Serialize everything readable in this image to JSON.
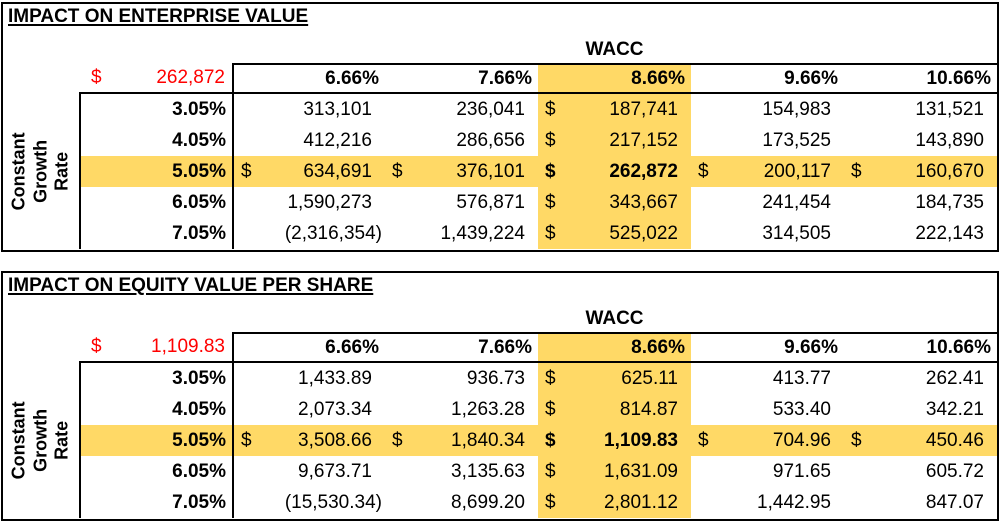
{
  "colors": {
    "highlight_fill": "#FFD966",
    "summary_text": "#FF0000",
    "border": "#000000",
    "text": "#000000",
    "background": "#FFFFFF"
  },
  "wacc_label": "WACC",
  "row_axis_label": "Constant\nGrowth Rate",
  "tables": [
    {
      "title": "IMPACT ON ENTERPRISE VALUE",
      "currency": "$",
      "base_value": {
        "currency": "$",
        "value": "262,872"
      },
      "col_headers": [
        "6.66%",
        "7.66%",
        "8.66%",
        "9.66%",
        "10.66%"
      ],
      "row_headers": [
        "3.05%",
        "4.05%",
        "5.05%",
        "6.05%",
        "7.05%"
      ],
      "highlight_col": 2,
      "highlight_row": 2,
      "rows": [
        [
          "313,101",
          "236,041",
          "187,741",
          "154,983",
          "131,521"
        ],
        [
          "412,216",
          "286,656",
          "217,152",
          "173,525",
          "143,890"
        ],
        [
          "634,691",
          "376,101",
          "262,872",
          "200,117",
          "160,670"
        ],
        [
          "1,590,273",
          "576,871",
          "343,667",
          "241,454",
          "184,735"
        ],
        [
          "(2,316,354)",
          "1,439,224",
          "525,022",
          "314,505",
          "222,143"
        ]
      ]
    },
    {
      "title": "IMPACT ON EQUITY VALUE PER SHARE",
      "currency": "$",
      "base_value": {
        "currency": "$",
        "value": "1,109.83"
      },
      "col_headers": [
        "6.66%",
        "7.66%",
        "8.66%",
        "9.66%",
        "10.66%"
      ],
      "row_headers": [
        "3.05%",
        "4.05%",
        "5.05%",
        "6.05%",
        "7.05%"
      ],
      "highlight_col": 2,
      "highlight_row": 2,
      "rows": [
        [
          "1,433.89",
          "936.73",
          "625.11",
          "413.77",
          "262.41"
        ],
        [
          "2,073.34",
          "1,263.28",
          "814.87",
          "533.40",
          "342.21"
        ],
        [
          "3,508.66",
          "1,840.34",
          "1,109.83",
          "704.96",
          "450.46"
        ],
        [
          "9,673.71",
          "3,135.63",
          "1,631.09",
          "971.65",
          "605.72"
        ],
        [
          "(15,530.34)",
          "8,699.20",
          "2,801.12",
          "1,442.95",
          "847.07"
        ]
      ]
    }
  ]
}
